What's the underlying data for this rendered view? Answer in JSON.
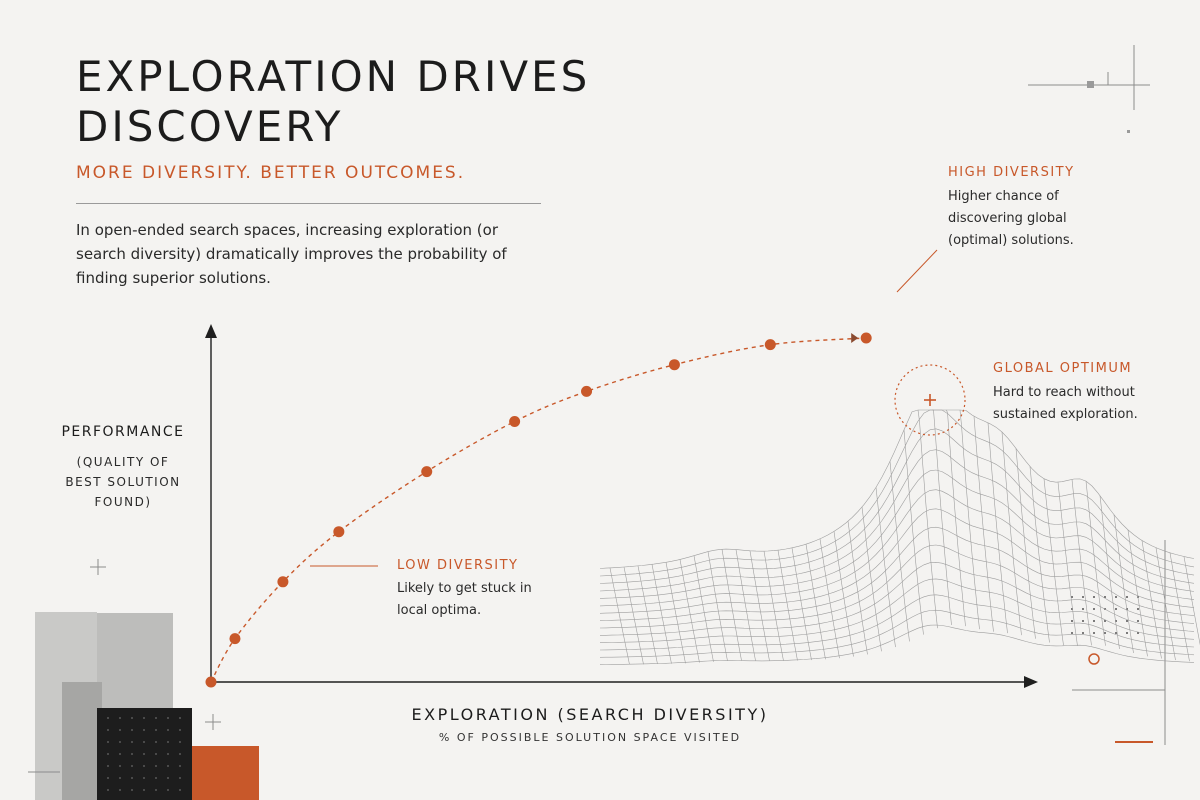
{
  "header": {
    "title_line1": "EXPLORATION DRIVES",
    "title_line2": "DISCOVERY",
    "subtitle": "MORE DIVERSITY.  BETTER OUTCOMES.",
    "intro": "In open-ended search spaces, increasing exploration (or search diversity) dramatically improves the probability of finding superior solutions."
  },
  "annotations": {
    "low": {
      "heading": "LOW DIVERSITY",
      "body_line1": "Likely to get stuck in",
      "body_line2": "local optima."
    },
    "high": {
      "heading": "HIGH DIVERSITY",
      "body_line1": "Higher chance of",
      "body_line2": "discovering global",
      "body_line3": "(optimal) solutions."
    },
    "global": {
      "heading": "GLOBAL OPTIMUM",
      "body_line1": "Hard to reach without",
      "body_line2": "sustained exploration."
    }
  },
  "colors": {
    "accent": "#c8582a",
    "axis": "#1f1f1f",
    "background": "#f4f3f1",
    "mesh": "#9e9e9e"
  },
  "chart_data": {
    "type": "line",
    "title": "EXPLORATION DRIVES DISCOVERY",
    "xlabel": "EXPLORATION (SEARCH DIVERSITY)",
    "xlabel_sub": "% OF POSSIBLE SOLUTION SPACE VISITED",
    "ylabel": "PERFORMANCE",
    "ylabel_sub_line1": "(QUALITY OF",
    "ylabel_sub_line2": "BEST SOLUTION",
    "ylabel_sub_line3": "FOUND)",
    "line_style": "dashed",
    "marker": "circle",
    "grid": false,
    "xlim": [
      0,
      100
    ],
    "ylim": [
      0,
      100
    ],
    "series": [
      {
        "x": [
          0,
          3,
          9,
          16,
          27,
          38,
          47,
          58,
          70,
          82
        ],
        "y": [
          0,
          13,
          30,
          45,
          63,
          78,
          87,
          95,
          101,
          103
        ]
      }
    ]
  }
}
